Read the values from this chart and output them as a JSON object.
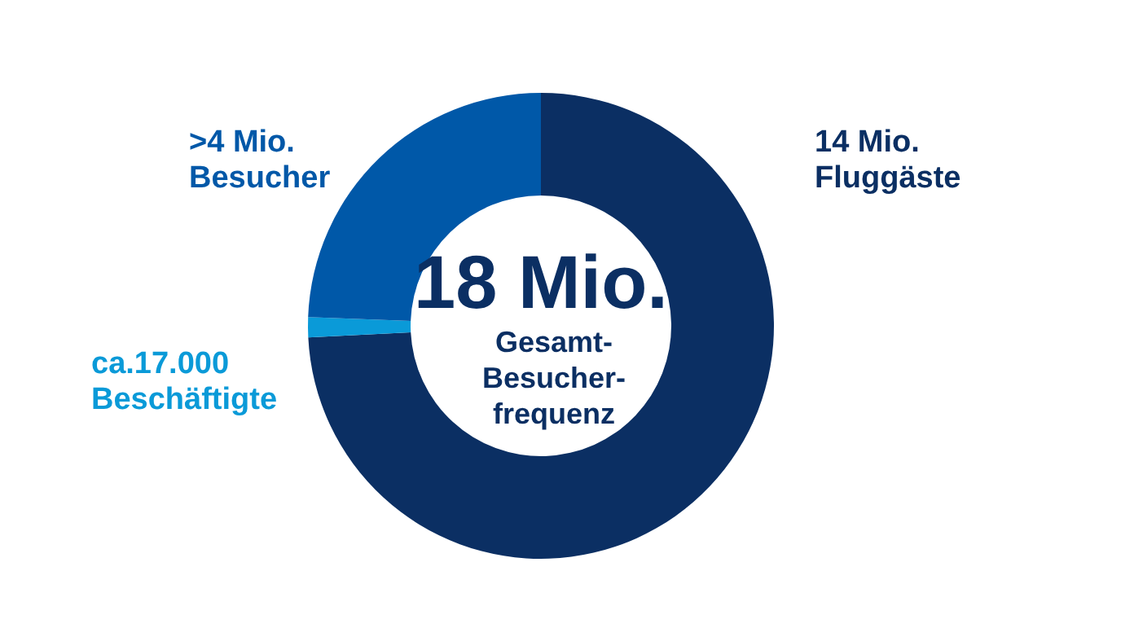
{
  "chart_data": {
    "type": "donut",
    "categories": [
      "14 Mio.\nFluggäste",
      "ca.17.000\nBeschäftigte",
      ">4 Mio.\nBesucher"
    ],
    "values": [
      74.2,
      1.4,
      24.4
    ],
    "colors": [
      "#0b2f63",
      "#0a9ad8",
      "#0058a8"
    ],
    "annotations": [
      "18 Mio.",
      "Gesamt-\nBesucher-\nfrequenz"
    ]
  }
}
